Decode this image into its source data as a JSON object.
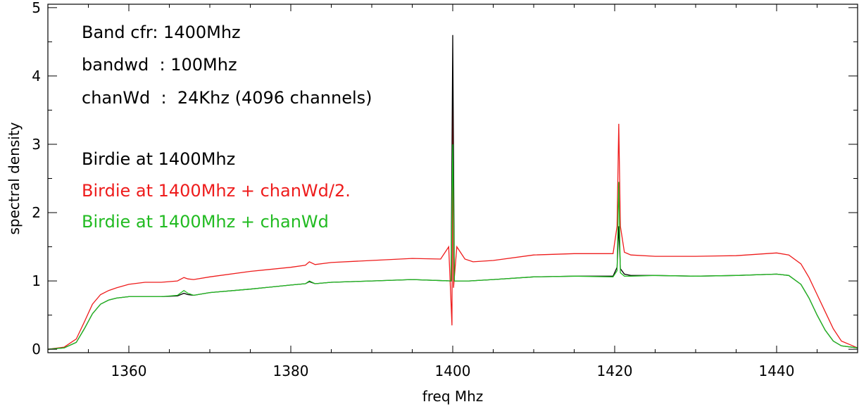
{
  "chart_data": {
    "type": "line",
    "title": "",
    "xlabel": "freq Mhz",
    "ylabel": "spectral density",
    "xlim": [
      1350,
      1450
    ],
    "ylim": [
      -0.05,
      5.05
    ],
    "xticks": [
      1360,
      1380,
      1400,
      1420,
      1440
    ],
    "yticks": [
      0,
      1,
      2,
      3,
      4,
      5
    ],
    "grid": false,
    "legend": "text annotations at top-left",
    "annotations": [
      {
        "text": "Band cfr: 1400Mhz",
        "color": "#000000"
      },
      {
        "text": "bandwd  : 100Mhz",
        "color": "#000000"
      },
      {
        "text": "chanWd  :  24Khz (4096 channels)",
        "color": "#000000"
      },
      {
        "text": "Birdie at 1400Mhz",
        "color": "#000000"
      },
      {
        "text": "Birdie at 1400Mhz + chanWd/2.",
        "color": "#ee1c1c"
      },
      {
        "text": "Birdie at 1400Mhz + chanWd",
        "color": "#22bb22"
      }
    ],
    "series": [
      {
        "color": "#000000",
        "x": [
          1350,
          1352,
          1353.5,
          1354.5,
          1355.5,
          1356.5,
          1357.5,
          1358.5,
          1360,
          1362,
          1364,
          1366,
          1366.8,
          1367.3,
          1368,
          1370,
          1375,
          1380,
          1381.8,
          1382.3,
          1383,
          1385,
          1390,
          1395,
          1399.8,
          1400,
          1400.2,
          1402,
          1405,
          1410,
          1415,
          1419.8,
          1420.3,
          1420.5,
          1420.7,
          1421.2,
          1422,
          1425,
          1430,
          1435,
          1440,
          1441.5,
          1443,
          1444,
          1445,
          1446,
          1447,
          1448,
          1450
        ],
        "y": [
          0.0,
          0.02,
          0.1,
          0.3,
          0.52,
          0.66,
          0.72,
          0.75,
          0.77,
          0.77,
          0.77,
          0.78,
          0.82,
          0.8,
          0.79,
          0.83,
          0.88,
          0.94,
          0.96,
          0.99,
          0.96,
          0.98,
          1.0,
          1.02,
          1.0,
          4.6,
          1.0,
          1.0,
          1.02,
          1.06,
          1.07,
          1.07,
          1.2,
          1.8,
          1.18,
          1.1,
          1.08,
          1.08,
          1.07,
          1.08,
          1.1,
          1.08,
          0.95,
          0.75,
          0.5,
          0.28,
          0.12,
          0.05,
          0.02
        ]
      },
      {
        "color": "#ee1c1c",
        "x": [
          1350,
          1352,
          1353.5,
          1354.5,
          1355.5,
          1356.5,
          1357.5,
          1358.5,
          1360,
          1362,
          1364,
          1366,
          1366.8,
          1367.3,
          1368,
          1370,
          1375,
          1380,
          1381.8,
          1382.3,
          1383,
          1385,
          1390,
          1395,
          1398.5,
          1399.5,
          1399.9,
          1400,
          1400.1,
          1400.5,
          1401.5,
          1402.5,
          1405,
          1410,
          1415,
          1419.8,
          1420.3,
          1420.5,
          1420.7,
          1421.2,
          1422,
          1425,
          1430,
          1435,
          1440,
          1441.5,
          1443,
          1444,
          1445,
          1446,
          1447,
          1448,
          1450
        ],
        "y": [
          0.0,
          0.03,
          0.15,
          0.4,
          0.66,
          0.8,
          0.86,
          0.9,
          0.95,
          0.98,
          0.98,
          1.0,
          1.05,
          1.03,
          1.02,
          1.06,
          1.14,
          1.2,
          1.23,
          1.28,
          1.24,
          1.27,
          1.3,
          1.33,
          1.32,
          1.5,
          0.35,
          4.05,
          0.9,
          1.5,
          1.32,
          1.28,
          1.3,
          1.38,
          1.4,
          1.4,
          1.8,
          3.3,
          1.8,
          1.42,
          1.38,
          1.36,
          1.36,
          1.37,
          1.41,
          1.38,
          1.25,
          1.05,
          0.8,
          0.55,
          0.3,
          0.12,
          0.02
        ]
      },
      {
        "color": "#22bb22",
        "x": [
          1350,
          1352,
          1353.5,
          1354.5,
          1355.5,
          1356.5,
          1357.5,
          1358.5,
          1360,
          1362,
          1364,
          1366,
          1366.8,
          1367.3,
          1368,
          1370,
          1375,
          1380,
          1381.8,
          1382.3,
          1383,
          1385,
          1390,
          1395,
          1399.8,
          1400,
          1400.2,
          1402,
          1405,
          1410,
          1415,
          1419.8,
          1420.3,
          1420.5,
          1420.7,
          1421.2,
          1422,
          1425,
          1430,
          1435,
          1440,
          1441.5,
          1443,
          1444,
          1445,
          1446,
          1447,
          1448,
          1450
        ],
        "y": [
          0.0,
          0.02,
          0.1,
          0.3,
          0.52,
          0.66,
          0.72,
          0.75,
          0.77,
          0.77,
          0.77,
          0.79,
          0.86,
          0.82,
          0.79,
          0.83,
          0.88,
          0.94,
          0.96,
          1.0,
          0.96,
          0.98,
          1.0,
          1.02,
          1.0,
          3.0,
          1.0,
          1.0,
          1.02,
          1.06,
          1.07,
          1.06,
          1.15,
          2.45,
          1.12,
          1.07,
          1.07,
          1.08,
          1.07,
          1.08,
          1.1,
          1.08,
          0.95,
          0.75,
          0.5,
          0.28,
          0.12,
          0.05,
          0.02
        ]
      }
    ]
  }
}
